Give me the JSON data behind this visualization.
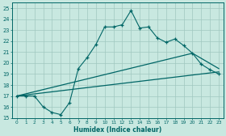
{
  "xlabel": "Humidex (Indice chaleur)",
  "xlim": [
    -0.5,
    23.5
  ],
  "ylim": [
    15,
    25.5
  ],
  "xtick_labels": [
    "0",
    "1",
    "2",
    "3",
    "4",
    "5",
    "6",
    "7",
    "8",
    "9",
    "10",
    "11",
    "12",
    "13",
    "14",
    "15",
    "16",
    "17",
    "18",
    "19",
    "20",
    "21",
    "22",
    "23"
  ],
  "ytick_labels": [
    "15",
    "16",
    "17",
    "18",
    "19",
    "20",
    "21",
    "22",
    "23",
    "24",
    "25"
  ],
  "ytick_vals": [
    15,
    16,
    17,
    18,
    19,
    20,
    21,
    22,
    23,
    24,
    25
  ],
  "bg_color": "#c8e8e0",
  "line_color": "#006666",
  "grid_color": "#a0c8c0",
  "line1_x": [
    0,
    1,
    2,
    3,
    4,
    5,
    6,
    7,
    8,
    9,
    10,
    11,
    12,
    13,
    14,
    15,
    16,
    17,
    18,
    19,
    20,
    21,
    22,
    23
  ],
  "line1_y": [
    17.0,
    17.0,
    17.0,
    16.0,
    15.5,
    15.3,
    16.4,
    19.5,
    20.5,
    21.7,
    23.3,
    23.3,
    23.5,
    24.8,
    23.2,
    23.3,
    22.3,
    21.9,
    22.2,
    21.6,
    20.9,
    19.9,
    19.4,
    19.0
  ],
  "line2_x": [
    0,
    23
  ],
  "line2_y": [
    17.0,
    19.2
  ],
  "line3_x": [
    0,
    20,
    23
  ],
  "line3_y": [
    17.0,
    20.9,
    19.5
  ]
}
